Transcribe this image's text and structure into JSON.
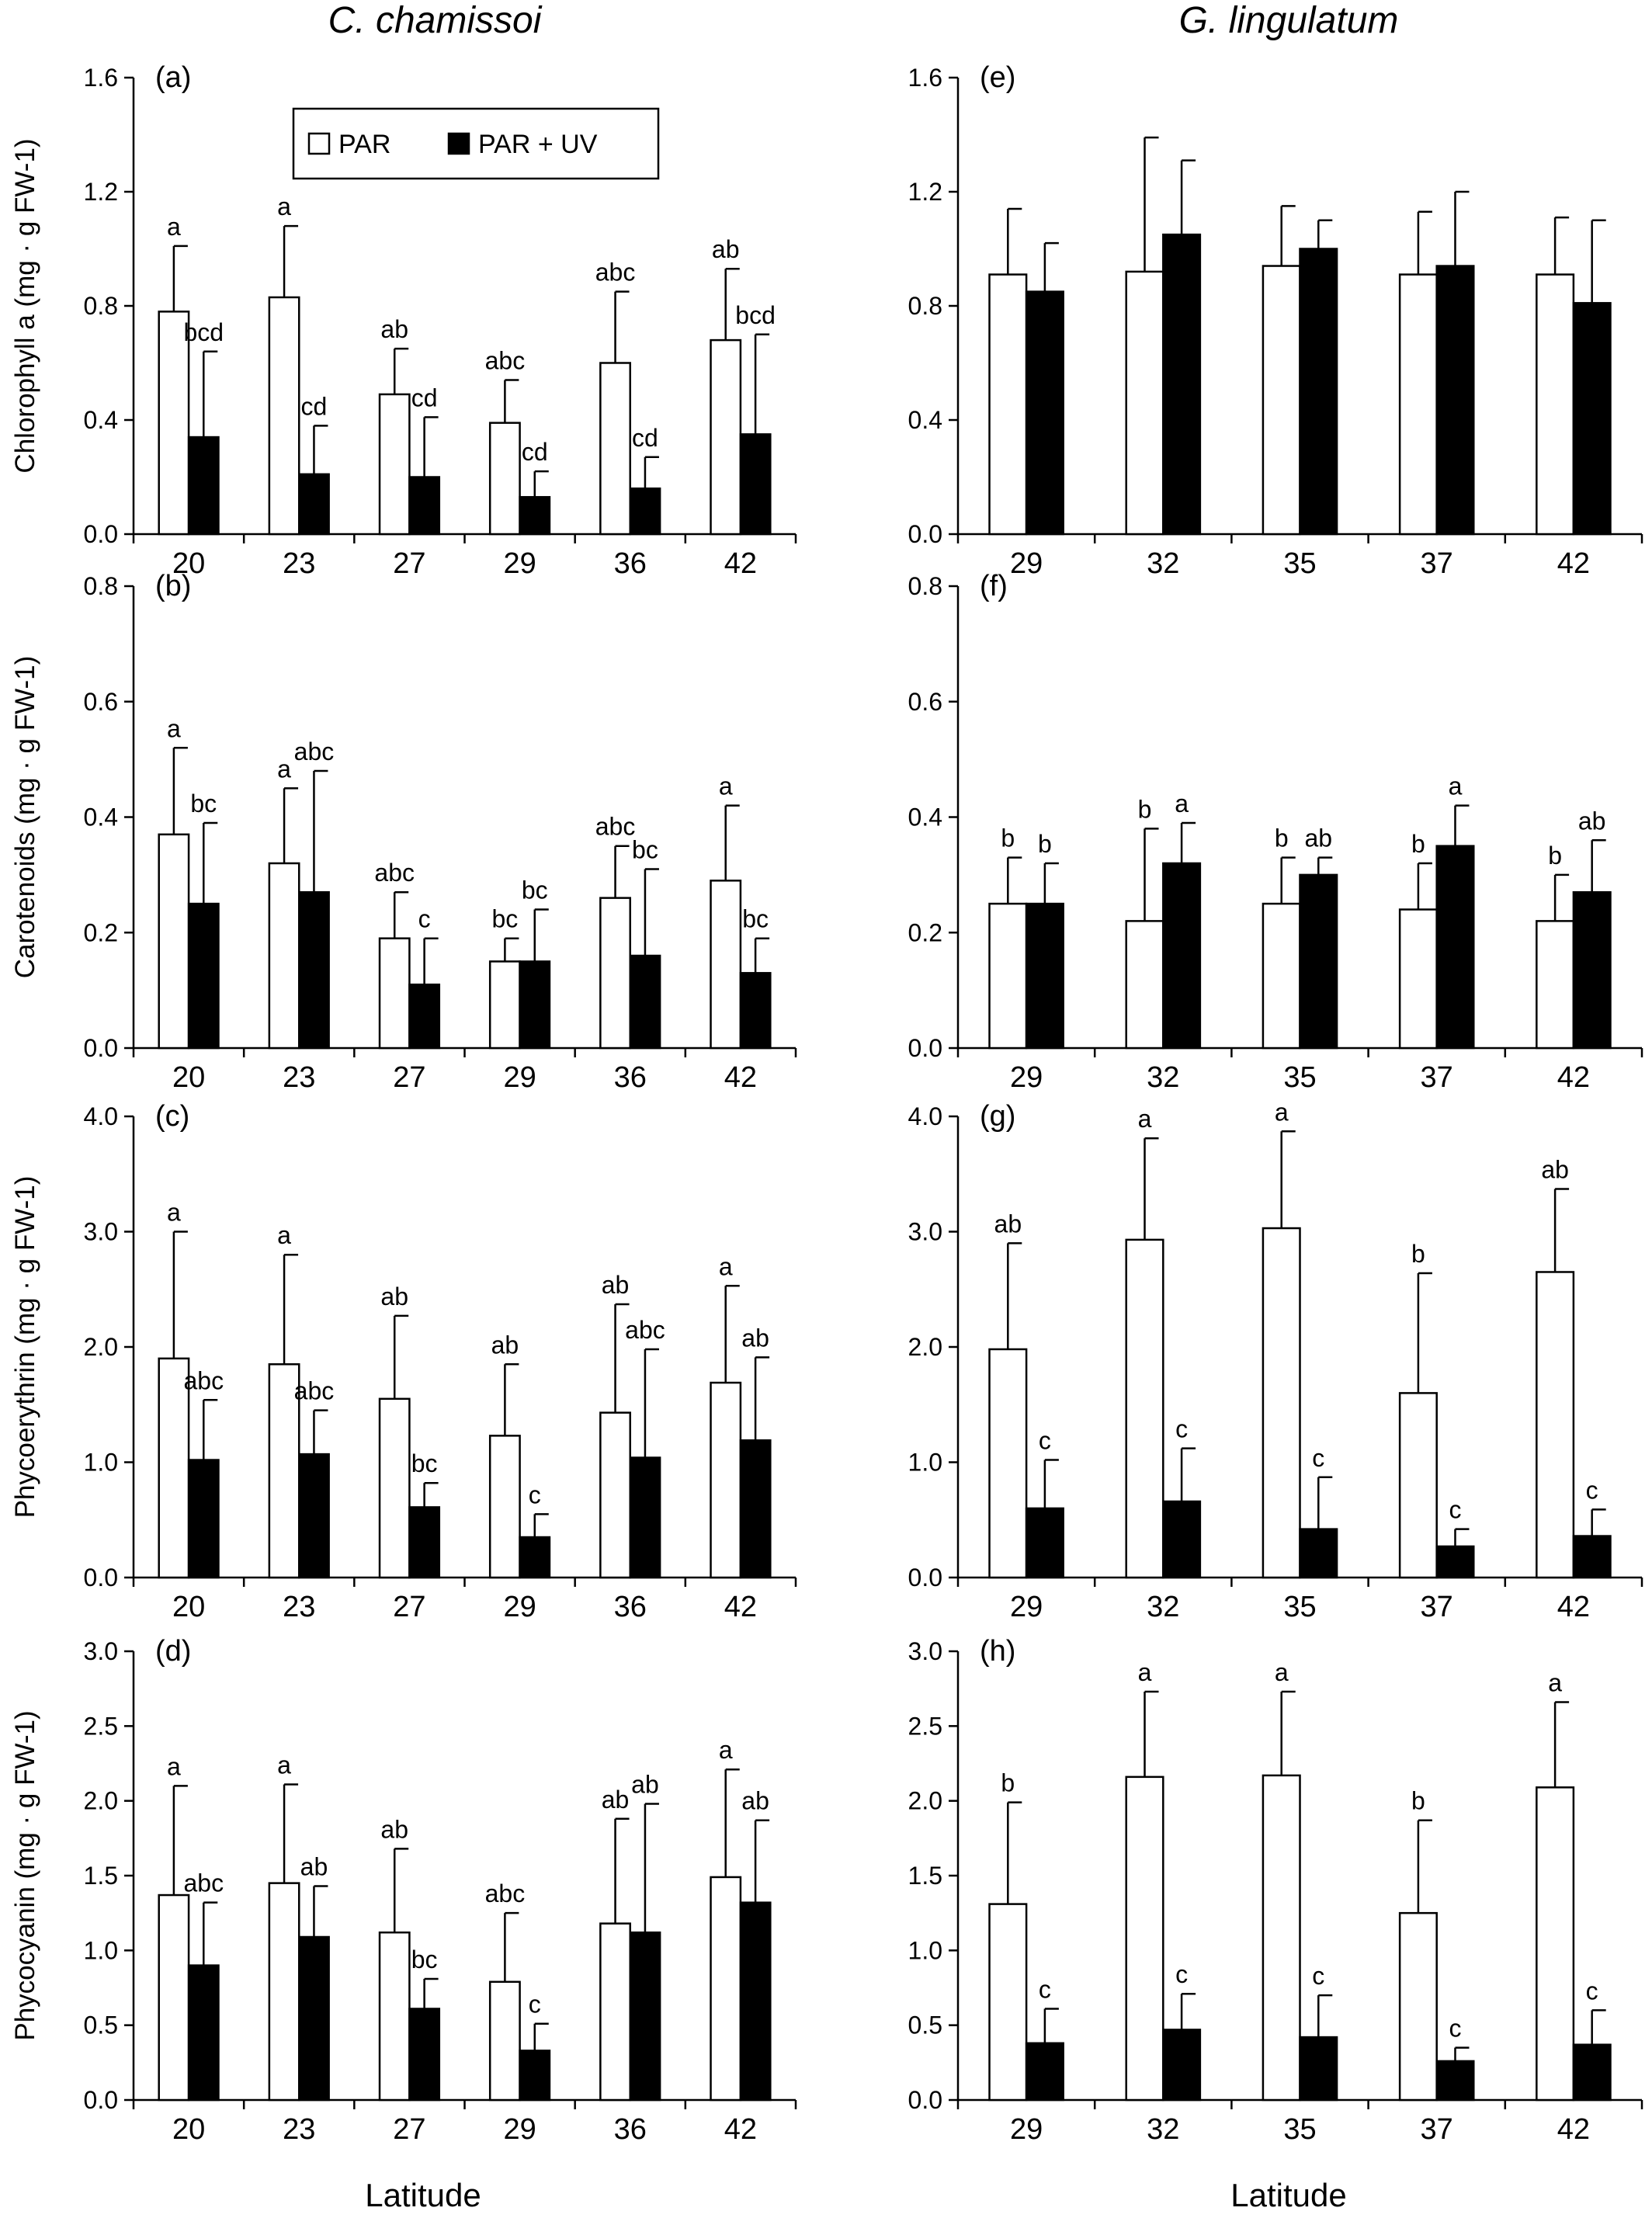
{
  "columns": [
    {
      "title": "C. chamissoi",
      "xlabel": "Latitude"
    },
    {
      "title": "G. lingulatum",
      "xlabel": "Latitude"
    }
  ],
  "legend": {
    "items": [
      {
        "label": "PAR",
        "color": "#ffffff"
      },
      {
        "label": "PAR + UV",
        "color": "#000000"
      }
    ],
    "placement": "top-center of panel (a)"
  },
  "colors": {
    "par": "#ffffff",
    "par_uv": "#000000",
    "outline": "#000000"
  },
  "chart_data": [
    {
      "panel": "(a)",
      "type": "bar",
      "ylabel": "Chlorophyll a (mg · g FW-1)",
      "ylim": [
        0,
        1.6
      ],
      "yticks": [
        "0.0",
        "0.4",
        "0.8",
        "1.2",
        "1.6"
      ],
      "categories": [
        "20",
        "23",
        "27",
        "29",
        "36",
        "42"
      ],
      "series": [
        {
          "name": "PAR",
          "values": [
            0.78,
            0.83,
            0.49,
            0.39,
            0.6,
            0.68
          ],
          "errors": [
            0.23,
            0.25,
            0.16,
            0.15,
            0.25,
            0.25
          ],
          "labels": [
            "a",
            "a",
            "ab",
            "abc",
            "abc",
            "ab"
          ]
        },
        {
          "name": "PAR + UV",
          "values": [
            0.34,
            0.21,
            0.2,
            0.13,
            0.16,
            0.35
          ],
          "errors": [
            0.3,
            0.17,
            0.21,
            0.09,
            0.11,
            0.35
          ],
          "labels": [
            "bcd",
            "cd",
            "cd",
            "cd",
            "cd",
            "bcd"
          ]
        }
      ]
    },
    {
      "panel": "(b)",
      "type": "bar",
      "ylabel": "Carotenoids (mg · g FW-1)",
      "ylim": [
        0,
        0.8
      ],
      "yticks": [
        "0.0",
        "0.2",
        "0.4",
        "0.6",
        "0.8"
      ],
      "categories": [
        "20",
        "23",
        "27",
        "29",
        "36",
        "42"
      ],
      "series": [
        {
          "name": "PAR",
          "values": [
            0.37,
            0.32,
            0.19,
            0.15,
            0.26,
            0.29
          ],
          "errors": [
            0.15,
            0.13,
            0.08,
            0.04,
            0.09,
            0.13
          ],
          "labels": [
            "a",
            "a",
            "abc",
            "bc",
            "abc",
            "a"
          ]
        },
        {
          "name": "PAR + UV",
          "values": [
            0.25,
            0.27,
            0.11,
            0.15,
            0.16,
            0.13
          ],
          "errors": [
            0.14,
            0.21,
            0.08,
            0.09,
            0.15,
            0.06
          ],
          "labels": [
            "bc",
            "abc",
            "c",
            "bc",
            "bc",
            "bc"
          ]
        }
      ]
    },
    {
      "panel": "(c)",
      "type": "bar",
      "ylabel": "Phycoerythrin (mg · g FW-1)",
      "ylim": [
        0,
        4.0
      ],
      "yticks": [
        "0.0",
        "1.0",
        "2.0",
        "3.0",
        "4.0"
      ],
      "categories": [
        "20",
        "23",
        "27",
        "29",
        "36",
        "42"
      ],
      "series": [
        {
          "name": "PAR",
          "values": [
            1.9,
            1.85,
            1.55,
            1.23,
            1.43,
            1.69
          ],
          "errors": [
            1.1,
            0.95,
            0.72,
            0.62,
            0.94,
            0.84
          ],
          "labels": [
            "a",
            "a",
            "ab",
            "ab",
            "ab",
            "a"
          ]
        },
        {
          "name": "PAR + UV",
          "values": [
            1.02,
            1.07,
            0.61,
            0.35,
            1.04,
            1.19
          ],
          "errors": [
            0.52,
            0.38,
            0.21,
            0.2,
            0.94,
            0.72
          ],
          "labels": [
            "abc",
            "abc",
            "bc",
            "c",
            "abc",
            "ab"
          ]
        }
      ]
    },
    {
      "panel": "(d)",
      "type": "bar",
      "ylabel": "Phycocyanin (mg · g FW-1)",
      "ylim": [
        0,
        3.0
      ],
      "yticks": [
        "0.0",
        "0.5",
        "1.0",
        "1.5",
        "2.0",
        "2.5",
        "3.0"
      ],
      "categories": [
        "20",
        "23",
        "27",
        "29",
        "36",
        "42"
      ],
      "series": [
        {
          "name": "PAR",
          "values": [
            1.37,
            1.45,
            1.12,
            0.79,
            1.18,
            1.49
          ],
          "errors": [
            0.73,
            0.66,
            0.56,
            0.46,
            0.7,
            0.72
          ],
          "labels": [
            "a",
            "a",
            "ab",
            "abc",
            "ab",
            "a"
          ]
        },
        {
          "name": "PAR + UV",
          "values": [
            0.9,
            1.09,
            0.61,
            0.33,
            1.12,
            1.32
          ],
          "errors": [
            0.42,
            0.34,
            0.2,
            0.18,
            0.86,
            0.55
          ],
          "labels": [
            "abc",
            "ab",
            "bc",
            "c",
            "ab",
            "ab"
          ]
        }
      ]
    },
    {
      "panel": "(e)",
      "type": "bar",
      "ylabel": "",
      "ylim": [
        0,
        1.6
      ],
      "yticks": [
        "0.0",
        "0.4",
        "0.8",
        "1.2",
        "1.6"
      ],
      "categories": [
        "29",
        "32",
        "35",
        "37",
        "42"
      ],
      "series": [
        {
          "name": "PAR",
          "values": [
            0.91,
            0.92,
            0.94,
            0.91,
            0.91
          ],
          "errors": [
            0.23,
            0.47,
            0.21,
            0.22,
            0.2
          ],
          "labels": [
            "",
            "",
            "",
            "",
            ""
          ]
        },
        {
          "name": "PAR + UV",
          "values": [
            0.85,
            1.05,
            1.0,
            0.94,
            0.81
          ],
          "errors": [
            0.17,
            0.26,
            0.1,
            0.26,
            0.29
          ],
          "labels": [
            "",
            "",
            "",
            "",
            ""
          ]
        }
      ]
    },
    {
      "panel": "(f)",
      "type": "bar",
      "ylabel": "",
      "ylim": [
        0,
        0.8
      ],
      "yticks": [
        "0.0",
        "0.2",
        "0.4",
        "0.6",
        "0.8"
      ],
      "categories": [
        "29",
        "32",
        "35",
        "37",
        "42"
      ],
      "series": [
        {
          "name": "PAR",
          "values": [
            0.25,
            0.22,
            0.25,
            0.24,
            0.22
          ],
          "errors": [
            0.08,
            0.16,
            0.08,
            0.08,
            0.08
          ],
          "labels": [
            "b",
            "b",
            "b",
            "b",
            "b"
          ]
        },
        {
          "name": "PAR + UV",
          "values": [
            0.25,
            0.32,
            0.3,
            0.35,
            0.27
          ],
          "errors": [
            0.07,
            0.07,
            0.03,
            0.07,
            0.09
          ],
          "labels": [
            "b",
            "a",
            "ab",
            "a",
            "ab"
          ]
        }
      ]
    },
    {
      "panel": "(g)",
      "type": "bar",
      "ylabel": "",
      "ylim": [
        0,
        4.0
      ],
      "yticks": [
        "0.0",
        "1.0",
        "2.0",
        "3.0",
        "4.0"
      ],
      "categories": [
        "29",
        "32",
        "35",
        "37",
        "42"
      ],
      "series": [
        {
          "name": "PAR",
          "values": [
            1.98,
            2.93,
            3.03,
            1.6,
            2.65
          ],
          "errors": [
            0.92,
            0.88,
            0.84,
            1.04,
            0.72
          ],
          "labels": [
            "ab",
            "a",
            "a",
            "b",
            "ab"
          ]
        },
        {
          "name": "PAR + UV",
          "values": [
            0.6,
            0.66,
            0.42,
            0.27,
            0.36
          ],
          "errors": [
            0.42,
            0.46,
            0.45,
            0.15,
            0.23
          ],
          "labels": [
            "c",
            "c",
            "c",
            "c",
            "c"
          ]
        }
      ]
    },
    {
      "panel": "(h)",
      "type": "bar",
      "ylabel": "",
      "ylim": [
        0,
        3.0
      ],
      "yticks": [
        "0.0",
        "0.5",
        "1.0",
        "1.5",
        "2.0",
        "2.5",
        "3.0"
      ],
      "categories": [
        "29",
        "32",
        "35",
        "37",
        "42"
      ],
      "series": [
        {
          "name": "PAR",
          "values": [
            1.31,
            2.16,
            2.17,
            1.25,
            2.09
          ],
          "errors": [
            0.68,
            0.57,
            0.56,
            0.62,
            0.57
          ],
          "labels": [
            "b",
            "a",
            "a",
            "b",
            "a"
          ]
        },
        {
          "name": "PAR + UV",
          "values": [
            0.38,
            0.47,
            0.42,
            0.26,
            0.37
          ],
          "errors": [
            0.23,
            0.24,
            0.28,
            0.09,
            0.23
          ],
          "labels": [
            "c",
            "c",
            "c",
            "c",
            "c"
          ]
        }
      ]
    }
  ]
}
